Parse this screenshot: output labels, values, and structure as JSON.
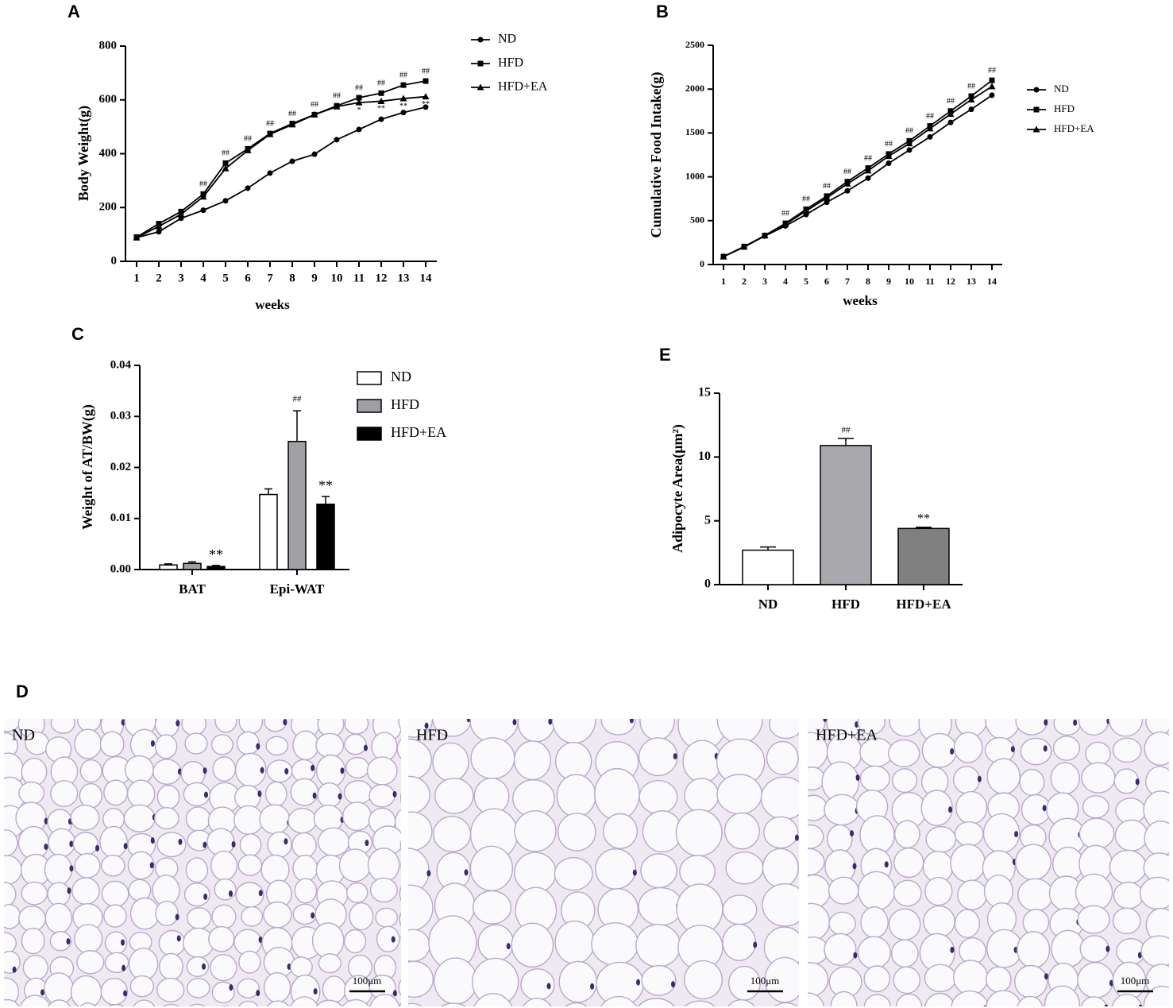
{
  "chart_data": [
    {
      "type": "line",
      "panel": "A",
      "y_label": "Body Weight(g)",
      "x_label": "weeks",
      "categories": [
        "1",
        "2",
        "3",
        "4",
        "5",
        "6",
        "7",
        "8",
        "9",
        "10",
        "11",
        "12",
        "13",
        "14"
      ],
      "ylim": [
        0,
        800
      ],
      "yticks": [
        0,
        200,
        400,
        600,
        800
      ],
      "series": [
        {
          "name": "ND",
          "color": "#000000",
          "marker": "circle",
          "values": [
            88,
            110,
            160,
            190,
            225,
            272,
            328,
            372,
            398,
            452,
            490,
            528,
            553,
            573
          ],
          "annotations": [
            null,
            null,
            null,
            null,
            null,
            null,
            null,
            null,
            null,
            null,
            null,
            null,
            null,
            null
          ]
        },
        {
          "name": "HFD",
          "color": "#000000",
          "marker": "square",
          "values": [
            90,
            140,
            185,
            250,
            365,
            418,
            475,
            512,
            545,
            578,
            608,
            625,
            655,
            670
          ],
          "annotations": [
            null,
            null,
            null,
            "##",
            "##",
            "##",
            "##",
            "##",
            "##",
            "##",
            "##",
            "##",
            "##",
            "##"
          ]
        },
        {
          "name": "HFD+EA",
          "color": "#000000",
          "marker": "triangle",
          "values": [
            88,
            130,
            175,
            240,
            345,
            412,
            472,
            508,
            545,
            575,
            590,
            595,
            605,
            612
          ],
          "annotations": [
            null,
            null,
            null,
            null,
            null,
            null,
            null,
            null,
            null,
            null,
            "*",
            "**",
            "**",
            "**"
          ]
        }
      ]
    },
    {
      "type": "line",
      "panel": "B",
      "y_label": "Cumulative Food Intake(g)",
      "x_label": "weeks",
      "categories": [
        "1",
        "2",
        "3",
        "4",
        "5",
        "6",
        "7",
        "8",
        "9",
        "10",
        "11",
        "12",
        "13",
        "14"
      ],
      "ylim": [
        0,
        2500
      ],
      "yticks": [
        0,
        500,
        1000,
        1500,
        2000,
        2500
      ],
      "series": [
        {
          "name": "ND",
          "color": "#000000",
          "marker": "circle",
          "values": [
            90,
            200,
            325,
            440,
            570,
            710,
            840,
            985,
            1155,
            1305,
            1455,
            1620,
            1770,
            1930
          ],
          "annotations": [
            null,
            null,
            null,
            null,
            null,
            null,
            null,
            null,
            null,
            null,
            null,
            null,
            null,
            null
          ]
        },
        {
          "name": "HFD",
          "color": "#000000",
          "marker": "square",
          "values": [
            90,
            205,
            330,
            470,
            630,
            780,
            945,
            1100,
            1260,
            1410,
            1580,
            1750,
            1920,
            2100
          ],
          "annotations": [
            null,
            null,
            null,
            "##",
            "##",
            "##",
            "##",
            "##",
            "##",
            "##",
            "##",
            "##",
            "##",
            "##"
          ]
        },
        {
          "name": "HFD+EA",
          "color": "#000000",
          "marker": "triangle",
          "values": [
            90,
            200,
            330,
            460,
            610,
            760,
            920,
            1070,
            1235,
            1380,
            1550,
            1715,
            1880,
            2030
          ],
          "annotations": [
            null,
            null,
            null,
            null,
            null,
            null,
            null,
            null,
            null,
            null,
            null,
            null,
            null,
            null
          ]
        }
      ]
    },
    {
      "type": "bar",
      "panel": "C",
      "y_label": "Weight of AT/BW(g)",
      "categories": [
        "BAT",
        "Epi-WAT"
      ],
      "ylim": [
        0,
        0.04
      ],
      "yticks": [
        {
          "value": 0,
          "label": "0.00"
        },
        {
          "value": 0.01,
          "label": "0.01"
        },
        {
          "value": 0.02,
          "label": "0.02"
        },
        {
          "value": 0.03,
          "label": "0.03"
        },
        {
          "value": 0.04,
          "label": "0.04"
        }
      ],
      "series": [
        {
          "name": "ND",
          "color": "#ffffff",
          "values": [
            0.0009,
            0.0147
          ],
          "errors": [
            0.0002,
            0.0011
          ],
          "annotations": [
            null,
            null
          ]
        },
        {
          "name": "HFD",
          "color": "#a0a0a4",
          "values": [
            0.0012,
            0.0251
          ],
          "errors": [
            0.0003,
            0.006
          ],
          "annotations": [
            null,
            "##"
          ]
        },
        {
          "name": "HFD+EA",
          "color": "#000000",
          "values": [
            0.0006,
            0.0128
          ],
          "errors": [
            0.0002,
            0.0015
          ],
          "annotations": [
            "**",
            "**"
          ]
        }
      ]
    },
    {
      "type": "bar",
      "panel": "E",
      "y_label": "Adipocyte Area(μm²)",
      "categories": [
        "ND",
        "HFD",
        "HFD+EA"
      ],
      "ylim": [
        0,
        15
      ],
      "yticks": [
        0,
        5,
        10,
        15
      ],
      "values": [
        2.7,
        10.9,
        4.4
      ],
      "errors": [
        0.25,
        0.55,
        0.1
      ],
      "annotations": [
        null,
        "##",
        "**"
      ],
      "colors": [
        "#ffffff",
        "#a8a8ac",
        "#808080"
      ]
    }
  ],
  "panel_d": {
    "panel": "D",
    "images": [
      {
        "label": "ND",
        "scale_bar": "100μm"
      },
      {
        "label": "HFD",
        "scale_bar": "100μm"
      },
      {
        "label": "HFD+EA",
        "scale_bar": "100μm"
      }
    ]
  }
}
